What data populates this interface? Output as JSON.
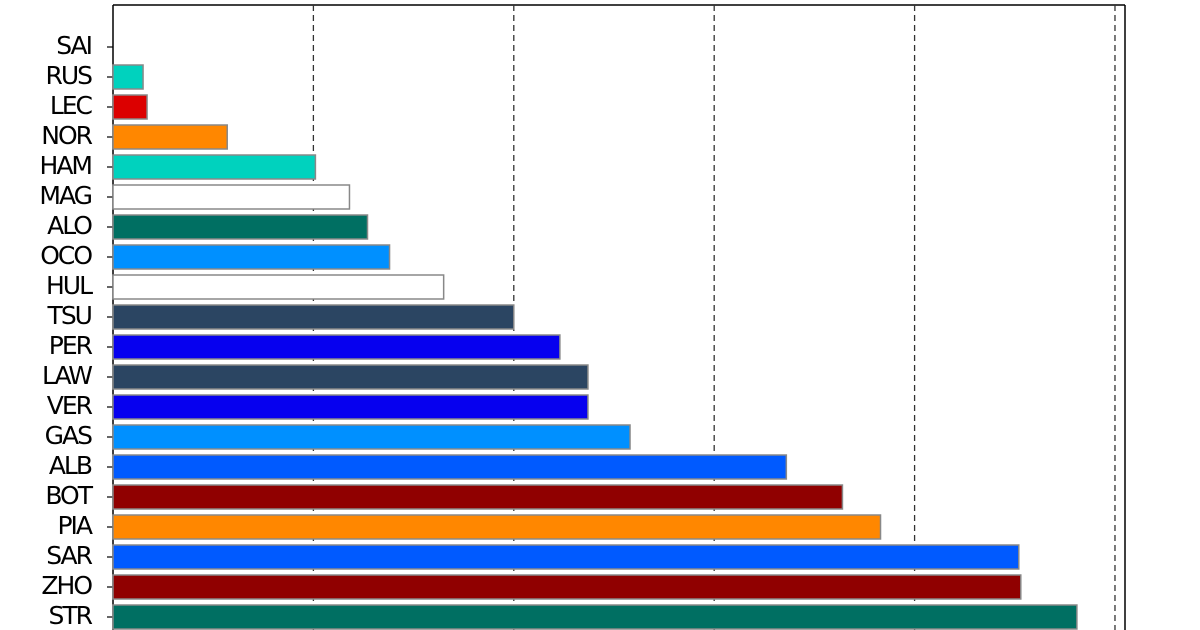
{
  "chart_data": {
    "type": "barh",
    "categories": [
      "SAI",
      "RUS",
      "LEC",
      "NOR",
      "HAM",
      "MAG",
      "ALO",
      "OCO",
      "HUL",
      "TSU",
      "PER",
      "LAW",
      "VER",
      "GAS",
      "ALB",
      "BOT",
      "PIA",
      "SAR",
      "ZHO",
      "STR"
    ],
    "values": [
      0,
      0.15,
      0.17,
      0.57,
      1.01,
      1.18,
      1.27,
      1.38,
      1.65,
      2.0,
      2.23,
      2.37,
      2.37,
      2.58,
      3.36,
      3.64,
      3.83,
      4.52,
      4.53,
      4.81
    ],
    "colors": [
      "#dc0000",
      "#00d2be",
      "#dc0000",
      "#ff8700",
      "#00d2be",
      "#ffffff",
      "#006f62",
      "#0090ff",
      "#ffffff",
      "#2b4562",
      "#0600ef",
      "#2b4562",
      "#0600ef",
      "#0090ff",
      "#005aff",
      "#900000",
      "#ff8700",
      "#005aff",
      "#900000",
      "#006f62"
    ],
    "xlim": [
      0,
      5.05
    ],
    "xticks": [
      1,
      2,
      3,
      4,
      5
    ],
    "grid": true
  }
}
